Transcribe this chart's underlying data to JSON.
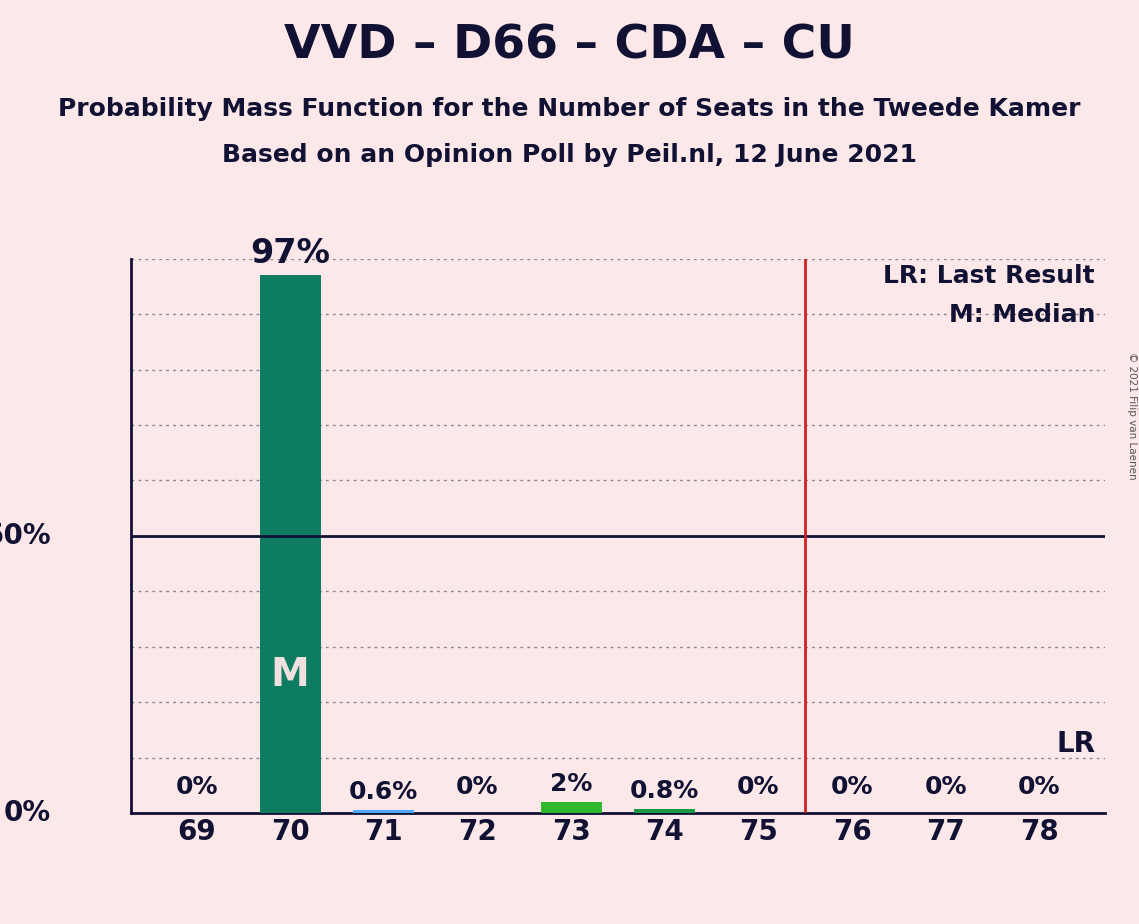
{
  "title": "VVD – D66 – CDA – CU",
  "subtitle1": "Probability Mass Function for the Number of Seats in the Tweede Kamer",
  "subtitle2": "Based on an Opinion Poll by Peil.nl, 12 June 2021",
  "copyright": "© 2021 Filip van Laenen",
  "seats": [
    69,
    70,
    71,
    72,
    73,
    74,
    75,
    76,
    77,
    78
  ],
  "probabilities": [
    0.0,
    97.0,
    0.6,
    0.0,
    2.0,
    0.8,
    0.0,
    0.0,
    0.0,
    0.0
  ],
  "bar_colors": [
    "#fce8e8",
    "#0e7c61",
    "#4da6ff",
    "#fce8e8",
    "#2db82d",
    "#1a9944",
    "#fce8e8",
    "#fce8e8",
    "#fce8e8",
    "#fce8e8"
  ],
  "bar_visible": [
    false,
    true,
    true,
    false,
    true,
    true,
    false,
    false,
    false,
    false
  ],
  "median_seat": 70,
  "last_result_seat": 75.5,
  "ylim_max": 100,
  "background_color": "#fce8e8",
  "grid_color": "#888888",
  "lr_line_color": "#cc2222",
  "annotation_color": "#111133",
  "median_label_color": "#f0e0e0",
  "title_fontsize": 34,
  "subtitle_fontsize": 18,
  "label_fontsize": 18,
  "tick_fontsize": 20,
  "pct_fontsize_large": 24,
  "pct_fontsize_small": 18,
  "m_fontsize": 28,
  "lr_fontsize": 20,
  "percent_labels": [
    "0%",
    "97%",
    "0.6%",
    "0%",
    "2%",
    "0.8%",
    "0%",
    "0%",
    "0%",
    "0%"
  ]
}
